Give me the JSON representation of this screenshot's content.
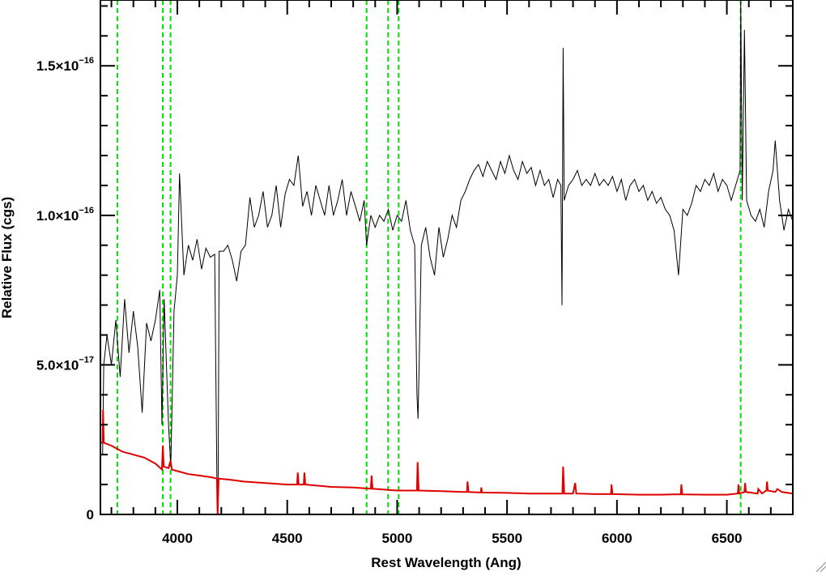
{
  "chart_data": {
    "type": "line",
    "title": "",
    "xlabel": "Rest Wavelength (Ang)",
    "ylabel": "Relative Flux (cgs)",
    "xlim": [
      3650,
      6800
    ],
    "ylim": [
      0,
      1.72e-16
    ],
    "x_ticks": [
      {
        "value": 4000,
        "label": "4000"
      },
      {
        "value": 4500,
        "label": "4500"
      },
      {
        "value": 5000,
        "label": "5000"
      },
      {
        "value": 5500,
        "label": "5500"
      },
      {
        "value": 6000,
        "label": "6000"
      },
      {
        "value": 6500,
        "label": "6500"
      }
    ],
    "x_minor_step": 100,
    "y_ticks": [
      {
        "value": 0,
        "mantissa": "0",
        "exponent": ""
      },
      {
        "value": 5e-17,
        "mantissa": "5.0×10",
        "exponent": "−17"
      },
      {
        "value": 1e-16,
        "mantissa": "1.0×10",
        "exponent": "−16"
      },
      {
        "value": 1.5e-16,
        "mantissa": "1.5×10",
        "exponent": "−16"
      }
    ],
    "y_minor_step": 1e-17,
    "grid": false,
    "colors": {
      "spectrum": "#000000",
      "error": "#e00000",
      "lines": "#00dd00"
    },
    "reference_lines": [
      3727,
      3934,
      3969,
      4861,
      4959,
      5007,
      6563
    ],
    "series": [
      {
        "role": "spectrum",
        "points": [
          [
            3650,
            2e-17
          ],
          [
            3660,
            2e-17
          ],
          [
            3665,
            5e-17
          ],
          [
            3680,
            6e-17
          ],
          [
            3700,
            5e-17
          ],
          [
            3720,
            6.5e-17
          ],
          [
            3740,
            4.6e-17
          ],
          [
            3760,
            7.2e-17
          ],
          [
            3780,
            5.4e-17
          ],
          [
            3800,
            6.8e-17
          ],
          [
            3820,
            5.6e-17
          ],
          [
            3840,
            3.4e-17
          ],
          [
            3860,
            6.4e-17
          ],
          [
            3880,
            5.8e-17
          ],
          [
            3900,
            6.5e-17
          ],
          [
            3920,
            7.5e-17
          ],
          [
            3930,
            3e-17
          ],
          [
            3940,
            7.2e-17
          ],
          [
            3960,
            3e-17
          ],
          [
            3970,
            1.6e-17
          ],
          [
            3985,
            6.8e-17
          ],
          [
            4000,
            8e-17
          ],
          [
            4010,
            1.14e-16
          ],
          [
            4030,
            8e-17
          ],
          [
            4050,
            9e-17
          ],
          [
            4070,
            8.5e-17
          ],
          [
            4090,
            9.2e-17
          ],
          [
            4110,
            8.2e-17
          ],
          [
            4130,
            8.9e-17
          ],
          [
            4150,
            8.6e-17
          ],
          [
            4170,
            8.7e-17
          ],
          [
            4180,
            1e-17
          ],
          [
            4185,
            0.0
          ],
          [
            4190,
            8.8e-17
          ],
          [
            4210,
            8.8e-17
          ],
          [
            4230,
            9e-17
          ],
          [
            4250,
            8.5e-17
          ],
          [
            4270,
            7.8e-17
          ],
          [
            4290,
            8.8e-17
          ],
          [
            4310,
            9e-17
          ],
          [
            4330,
            1.06e-16
          ],
          [
            4350,
            9.6e-17
          ],
          [
            4370,
            1e-16
          ],
          [
            4390,
            1.08e-16
          ],
          [
            4410,
            9.6e-17
          ],
          [
            4430,
            1e-16
          ],
          [
            4450,
            1.1e-16
          ],
          [
            4470,
            9.6e-17
          ],
          [
            4490,
            1.07e-16
          ],
          [
            4510,
            1.12e-16
          ],
          [
            4530,
            1.1e-16
          ],
          [
            4550,
            1.2e-16
          ],
          [
            4570,
            1.03e-16
          ],
          [
            4590,
            1.08e-16
          ],
          [
            4610,
            1e-16
          ],
          [
            4630,
            1.1e-16
          ],
          [
            4650,
            1.05e-16
          ],
          [
            4670,
            1e-16
          ],
          [
            4690,
            1.1e-16
          ],
          [
            4710,
            1e-16
          ],
          [
            4730,
            1.05e-16
          ],
          [
            4750,
            1.12e-16
          ],
          [
            4770,
            1e-16
          ],
          [
            4790,
            1.08e-16
          ],
          [
            4810,
            1.03e-16
          ],
          [
            4830,
            9.8e-17
          ],
          [
            4850,
            1.05e-16
          ],
          [
            4861,
            9e-17
          ],
          [
            4880,
            1e-16
          ],
          [
            4900,
            9.6e-17
          ],
          [
            4920,
            1e-16
          ],
          [
            4940,
            9.8e-17
          ],
          [
            4960,
            1.02e-16
          ],
          [
            4980,
            9.5e-17
          ],
          [
            5000,
            1e-16
          ],
          [
            5020,
            9.8e-17
          ],
          [
            5040,
            1.05e-16
          ],
          [
            5060,
            9.5e-17
          ],
          [
            5080,
            9e-17
          ],
          [
            5090,
            4e-17
          ],
          [
            5095,
            3.2e-17
          ],
          [
            5100,
            5e-17
          ],
          [
            5110,
            9e-17
          ],
          [
            5130,
            9.6e-17
          ],
          [
            5150,
            8.6e-17
          ],
          [
            5170,
            8e-17
          ],
          [
            5190,
            9.6e-17
          ],
          [
            5210,
            8.6e-17
          ],
          [
            5230,
            9.2e-17
          ],
          [
            5250,
            1e-16
          ],
          [
            5270,
            9.6e-17
          ],
          [
            5290,
            1.05e-16
          ],
          [
            5310,
            1.08e-16
          ],
          [
            5330,
            1.12e-16
          ],
          [
            5350,
            1.15e-16
          ],
          [
            5370,
            1.17e-16
          ],
          [
            5390,
            1.13e-16
          ],
          [
            5410,
            1.18e-16
          ],
          [
            5430,
            1.15e-16
          ],
          [
            5450,
            1.12e-16
          ],
          [
            5470,
            1.18e-16
          ],
          [
            5490,
            1.14e-16
          ],
          [
            5510,
            1.2e-16
          ],
          [
            5530,
            1.15e-16
          ],
          [
            5550,
            1.12e-16
          ],
          [
            5570,
            1.18e-16
          ],
          [
            5590,
            1.14e-16
          ],
          [
            5610,
            1.16e-16
          ],
          [
            5630,
            1.1e-16
          ],
          [
            5650,
            1.15e-16
          ],
          [
            5670,
            1.1e-16
          ],
          [
            5690,
            1.12e-16
          ],
          [
            5710,
            1.06e-16
          ],
          [
            5730,
            1.12e-16
          ],
          [
            5745,
            1.1e-16
          ],
          [
            5750,
            7e-17
          ],
          [
            5755,
            1.56e-16
          ],
          [
            5760,
            1.05e-16
          ],
          [
            5780,
            1.1e-16
          ],
          [
            5800,
            1.12e-16
          ],
          [
            5820,
            1.15e-16
          ],
          [
            5840,
            1.1e-16
          ],
          [
            5860,
            1.12e-16
          ],
          [
            5880,
            1.1e-16
          ],
          [
            5900,
            1.14e-16
          ],
          [
            5920,
            1.1e-16
          ],
          [
            5940,
            1.12e-16
          ],
          [
            5960,
            1.1e-16
          ],
          [
            5980,
            1.13e-16
          ],
          [
            6000,
            1.08e-16
          ],
          [
            6020,
            1.12e-16
          ],
          [
            6040,
            1.05e-16
          ],
          [
            6060,
            1.1e-16
          ],
          [
            6080,
            1.12e-16
          ],
          [
            6100,
            1.08e-16
          ],
          [
            6120,
            1.1e-16
          ],
          [
            6140,
            1.05e-16
          ],
          [
            6160,
            1.08e-16
          ],
          [
            6180,
            1.04e-16
          ],
          [
            6200,
            1.06e-16
          ],
          [
            6220,
            1.02e-16
          ],
          [
            6240,
            1e-16
          ],
          [
            6260,
            9.5e-17
          ],
          [
            6280,
            8e-17
          ],
          [
            6300,
            1.02e-16
          ],
          [
            6320,
            1e-16
          ],
          [
            6340,
            1.04e-16
          ],
          [
            6360,
            1.1e-16
          ],
          [
            6380,
            1.08e-16
          ],
          [
            6400,
            1.12e-16
          ],
          [
            6420,
            1.1e-16
          ],
          [
            6440,
            1.14e-16
          ],
          [
            6460,
            1.08e-16
          ],
          [
            6480,
            1.12e-16
          ],
          [
            6500,
            1.1e-16
          ],
          [
            6520,
            1.05e-16
          ],
          [
            6540,
            1.1e-16
          ],
          [
            6560,
            1.15e-16
          ],
          [
            6563,
            1.72e-16
          ],
          [
            6570,
            1.05e-16
          ],
          [
            6580,
            1.62e-16
          ],
          [
            6590,
            1.05e-16
          ],
          [
            6610,
            1e-16
          ],
          [
            6630,
            9.8e-17
          ],
          [
            6650,
            1.02e-16
          ],
          [
            6670,
            9.6e-17
          ],
          [
            6690,
            1.08e-16
          ],
          [
            6710,
            1.15e-16
          ],
          [
            6720,
            1.25e-16
          ],
          [
            6740,
            1.05e-16
          ],
          [
            6760,
            9.5e-17
          ],
          [
            6780,
            1.02e-16
          ],
          [
            6800,
            9.8e-17
          ]
        ]
      },
      {
        "role": "error",
        "points": [
          [
            3650,
            2.4e-17
          ],
          [
            3660,
            2.4e-17
          ],
          [
            3662,
            3.5e-17
          ],
          [
            3665,
            2.4e-17
          ],
          [
            3700,
            2.3e-17
          ],
          [
            3750,
            2.1e-17
          ],
          [
            3800,
            2e-17
          ],
          [
            3850,
            1.9e-17
          ],
          [
            3900,
            1.7e-17
          ],
          [
            3930,
            1.5e-17
          ],
          [
            3934,
            2.3e-17
          ],
          [
            3938,
            1.6e-17
          ],
          [
            3960,
            1.55e-17
          ],
          [
            3969,
            1.8e-17
          ],
          [
            3975,
            1.5e-17
          ],
          [
            4000,
            1.45e-17
          ],
          [
            4050,
            1.35e-17
          ],
          [
            4100,
            1.3e-17
          ],
          [
            4150,
            1.25e-17
          ],
          [
            4180,
            1.2e-17
          ],
          [
            4183,
            0.0
          ],
          [
            4188,
            1.2e-17
          ],
          [
            4250,
            1.15e-17
          ],
          [
            4300,
            1.1e-17
          ],
          [
            4400,
            1.05e-17
          ],
          [
            4500,
            1e-17
          ],
          [
            4545,
            1e-17
          ],
          [
            4548,
            1.4e-17
          ],
          [
            4552,
            1e-17
          ],
          [
            4575,
            1e-17
          ],
          [
            4578,
            1.4e-17
          ],
          [
            4582,
            1e-17
          ],
          [
            4700,
            9.2e-18
          ],
          [
            4800,
            9e-18
          ],
          [
            4880,
            8.6e-18
          ],
          [
            4884,
            1.3e-17
          ],
          [
            4888,
            8.6e-18
          ],
          [
            5000,
            8e-18
          ],
          [
            5090,
            8e-18
          ],
          [
            5093,
            1.75e-17
          ],
          [
            5098,
            8e-18
          ],
          [
            5200,
            7.8e-18
          ],
          [
            5300,
            7.5e-18
          ],
          [
            5318,
            7.5e-18
          ],
          [
            5320,
            1.1e-17
          ],
          [
            5325,
            7.5e-18
          ],
          [
            5380,
            7.3e-18
          ],
          [
            5383,
            9e-18
          ],
          [
            5386,
            7.3e-18
          ],
          [
            5500,
            7.2e-18
          ],
          [
            5600,
            7e-18
          ],
          [
            5700,
            7e-18
          ],
          [
            5752,
            7e-18
          ],
          [
            5755,
            1.6e-17
          ],
          [
            5760,
            7e-18
          ],
          [
            5800,
            7e-18
          ],
          [
            5810,
            1.05e-17
          ],
          [
            5815,
            7e-18
          ],
          [
            5900,
            6.8e-18
          ],
          [
            5973,
            6.8e-18
          ],
          [
            5975,
            1e-17
          ],
          [
            5980,
            6.8e-18
          ],
          [
            6100,
            6.6e-18
          ],
          [
            6200,
            6.6e-18
          ],
          [
            6250,
            6.7e-18
          ],
          [
            6290,
            6.7e-18
          ],
          [
            6293,
            1e-17
          ],
          [
            6297,
            6.7e-18
          ],
          [
            6400,
            6.6e-18
          ],
          [
            6500,
            6.6e-18
          ],
          [
            6550,
            7e-18
          ],
          [
            6553,
            1e-17
          ],
          [
            6556,
            7e-18
          ],
          [
            6580,
            7.5e-18
          ],
          [
            6583,
            1.05e-17
          ],
          [
            6587,
            7.5e-18
          ],
          [
            6640,
            7e-18
          ],
          [
            6643,
            8.5e-18
          ],
          [
            6660,
            7e-18
          ],
          [
            6680,
            8e-18
          ],
          [
            6683,
            1.1e-17
          ],
          [
            6686,
            8e-18
          ],
          [
            6720,
            7.5e-18
          ],
          [
            6730,
            8.5e-18
          ],
          [
            6750,
            7.5e-18
          ],
          [
            6800,
            7e-18
          ]
        ]
      }
    ]
  }
}
